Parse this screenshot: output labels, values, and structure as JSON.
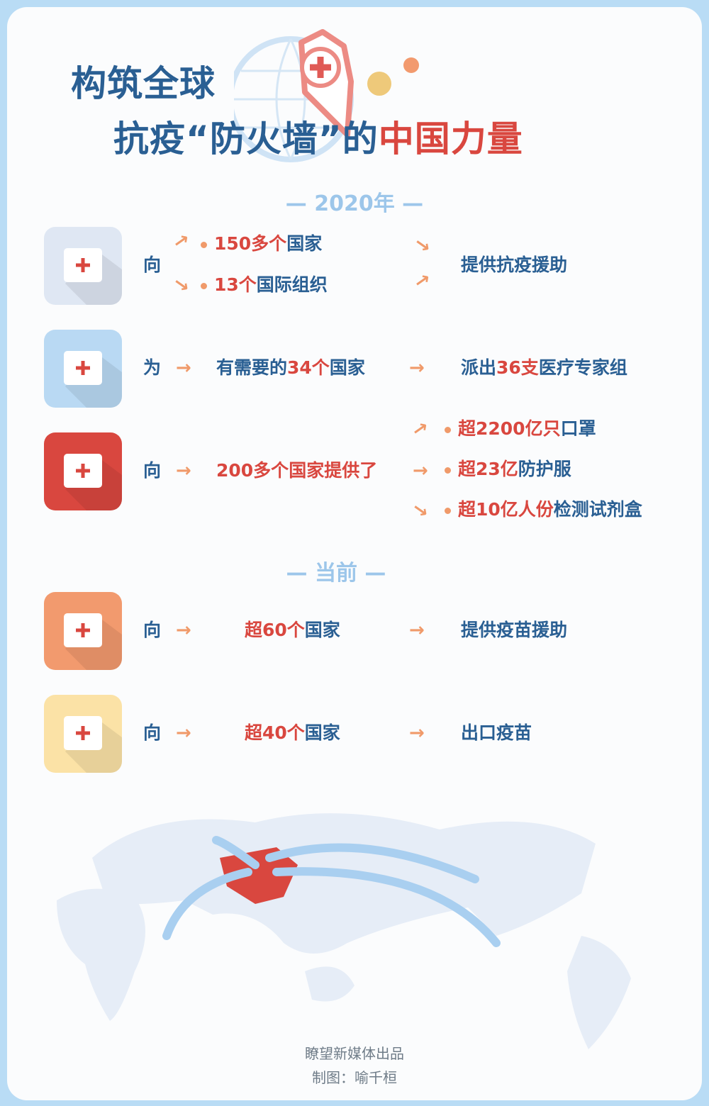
{
  "header": {
    "line1": "构筑全球",
    "line2a": "抗疫“防火墙”的",
    "line2b": "中国力量"
  },
  "sections": {
    "s2020": "— 2020年 —",
    "current": "— 当前 —"
  },
  "rows": [
    {
      "icon": "medical-kit-icon",
      "color": "#dfe7f3",
      "lead": "向",
      "targets": [
        [
          {
            "t": "150多个",
            "c": "red"
          },
          {
            "t": "国家",
            "c": "blue"
          }
        ],
        [
          {
            "t": "13个",
            "c": "red"
          },
          {
            "t": "国际组织",
            "c": "blue"
          }
        ]
      ],
      "results": [
        [
          {
            "t": "提供抗疫援助",
            "c": "blue"
          }
        ]
      ]
    },
    {
      "icon": "medical-team-icon",
      "color": "#b9d9f3",
      "lead": "为",
      "targets": [
        [
          {
            "t": "有需要的",
            "c": "blue"
          },
          {
            "t": "34个",
            "c": "red"
          },
          {
            "t": "国家",
            "c": "blue"
          }
        ]
      ],
      "results": [
        [
          {
            "t": "派出",
            "c": "blue"
          },
          {
            "t": "36支",
            "c": "red"
          },
          {
            "t": "医疗专家组",
            "c": "blue"
          }
        ]
      ]
    },
    {
      "icon": "face-mask-icon",
      "color": "#d9473f",
      "lead": "向",
      "targets": [
        [
          {
            "t": "200多个",
            "c": "red"
          },
          {
            "t": "国家提供了",
            "c": "red"
          }
        ]
      ],
      "results": [
        [
          {
            "t": "超2200亿只",
            "c": "red"
          },
          {
            "t": "口罩",
            "c": "blue"
          }
        ],
        [
          {
            "t": "超23亿",
            "c": "red"
          },
          {
            "t": "防护服",
            "c": "blue"
          }
        ],
        [
          {
            "t": "超10亿人份",
            "c": "red"
          },
          {
            "t": "检测试剂盒",
            "c": "blue"
          }
        ]
      ]
    },
    {
      "icon": "syringe-icon",
      "color": "#f29a6e",
      "lead": "向",
      "targets": [
        [
          {
            "t": "超60个",
            "c": "red"
          },
          {
            "t": "国家",
            "c": "blue"
          }
        ]
      ],
      "results": [
        [
          {
            "t": "提供疫苗援助",
            "c": "blue"
          }
        ]
      ]
    },
    {
      "icon": "ambulance-icon",
      "color": "#fbe2a6",
      "lead": "向",
      "targets": [
        [
          {
            "t": "超40个",
            "c": "red"
          },
          {
            "t": "国家",
            "c": "blue"
          }
        ]
      ],
      "results": [
        [
          {
            "t": "出口疫苗",
            "c": "blue"
          }
        ]
      ]
    }
  ],
  "arrow": "→",
  "credits": {
    "producer": "瞭望新媒体出品",
    "designer": "制图：喻千桓"
  }
}
